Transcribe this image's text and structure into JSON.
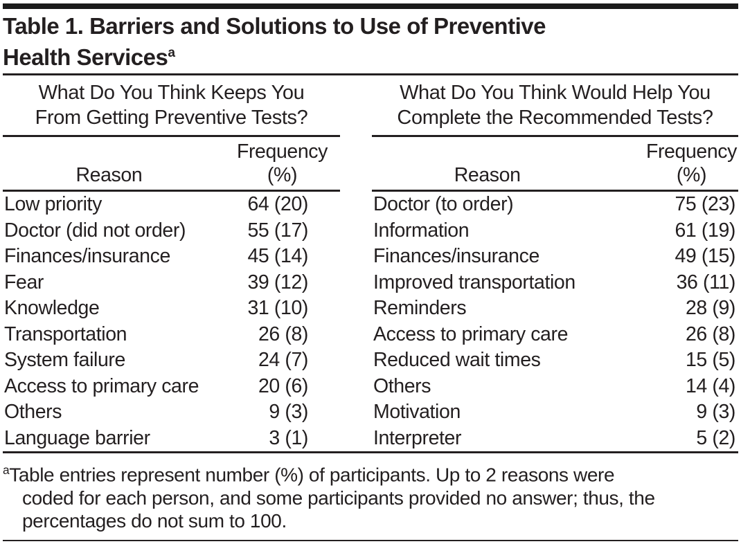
{
  "title": {
    "lines": [
      "Table 1. Barriers and Solutions to Use of Preventive",
      "Health Services"
    ],
    "superscript": "a"
  },
  "panels": [
    {
      "name": "barriers",
      "question_lines": [
        "What Do You Think Keeps You",
        "From Getting Preventive Tests?"
      ],
      "columns": {
        "reason": "Reason",
        "frequency_line1": "Frequency",
        "frequency_line2": "(%)"
      },
      "rows": [
        {
          "reason": "Low priority",
          "frequency": "64 (20)"
        },
        {
          "reason": "Doctor (did not order)",
          "frequency": "55 (17)"
        },
        {
          "reason": "Finances/insurance",
          "frequency": "45 (14)"
        },
        {
          "reason": "Fear",
          "frequency": "39 (12)"
        },
        {
          "reason": "Knowledge",
          "frequency": "31 (10)"
        },
        {
          "reason": "Transportation",
          "frequency": "26 (8)"
        },
        {
          "reason": "System failure",
          "frequency": "24 (7)"
        },
        {
          "reason": "Access to primary care",
          "frequency": "20 (6)"
        },
        {
          "reason": "Others",
          "frequency": "9 (3)"
        },
        {
          "reason": "Language barrier",
          "frequency": "3 (1)"
        }
      ]
    },
    {
      "name": "solutions",
      "question_lines": [
        "What Do You Think Would Help You",
        "Complete the Recommended Tests?"
      ],
      "columns": {
        "reason": "Reason",
        "frequency_line1": "Frequency",
        "frequency_line2": "(%)"
      },
      "rows": [
        {
          "reason": "Doctor (to order)",
          "frequency": "75 (23)"
        },
        {
          "reason": "Information",
          "frequency": "61 (19)"
        },
        {
          "reason": "Finances/insurance",
          "frequency": "49 (15)"
        },
        {
          "reason": "Improved transportation",
          "frequency": "36 (11)"
        },
        {
          "reason": "Reminders",
          "frequency": "28 (9)"
        },
        {
          "reason": "Access to primary care",
          "frequency": "26 (8)"
        },
        {
          "reason": "Reduced wait times",
          "frequency": "15 (5)"
        },
        {
          "reason": "Others",
          "frequency": "14 (4)"
        },
        {
          "reason": "Motivation",
          "frequency": "9 (3)"
        },
        {
          "reason": "Interpreter",
          "frequency": "5 (2)"
        }
      ]
    }
  ],
  "footnote": {
    "marker": "a",
    "lines": [
      "Table entries represent number (%) of participants. Up to 2 reasons were",
      "coded for each person, and some participants provided no answer; thus, the",
      "percentages do not sum to 100."
    ]
  },
  "colors": {
    "text": "#231f20",
    "rule": "#231f20",
    "top_bar": "#1b1b1b",
    "background": "#ffffff"
  }
}
